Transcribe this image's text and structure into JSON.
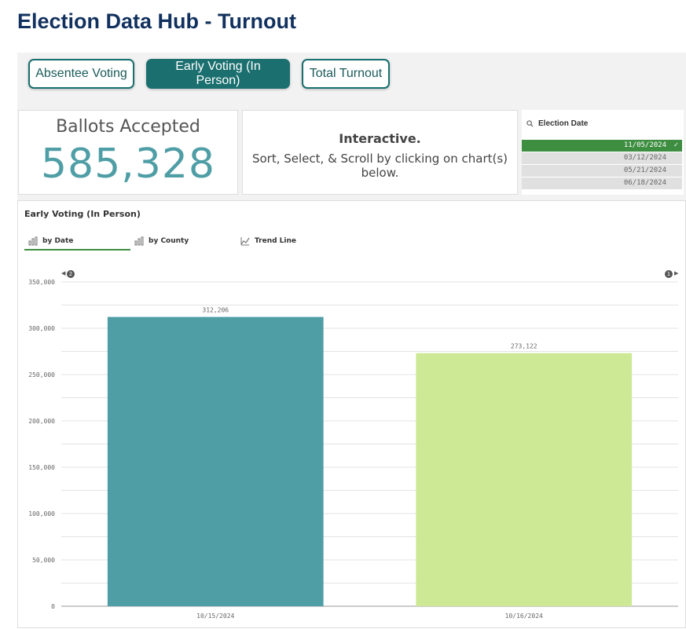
{
  "page": {
    "title": "Election Data Hub - Turnout"
  },
  "tabs": [
    {
      "label": "Absentee Voting",
      "active": false
    },
    {
      "label": "Early Voting (In Person)",
      "active": true
    },
    {
      "label": "Total Turnout",
      "active": false
    }
  ],
  "kpi": {
    "label": "Ballots Accepted",
    "value": "585,328"
  },
  "info": {
    "title": "Interactive.",
    "text": "Sort, Select, & Scroll by clicking on chart(s) below."
  },
  "filter": {
    "title": "Election Date",
    "items": [
      "11/05/2024",
      "03/12/2024",
      "05/21/2024",
      "06/18/2024"
    ],
    "selected": "11/05/2024"
  },
  "chart_panel": {
    "title": "Early Voting (In Person)",
    "subtabs": [
      "by Date",
      "by County",
      "Trend Line"
    ],
    "active_subtab": "by Date",
    "scroll_left_count": "2",
    "scroll_right_count": "1"
  },
  "colors": {
    "accent": "#1b6f6f",
    "bar1": "#4f9ea6",
    "bar2": "#cde995",
    "selected": "#3e8e41"
  },
  "chart_data": {
    "type": "bar",
    "categories": [
      "10/15/2024",
      "10/16/2024"
    ],
    "values": [
      312206,
      273122
    ],
    "value_labels": [
      "312,206",
      "273,122"
    ],
    "ylim": [
      0,
      350000
    ],
    "yticks": [
      0,
      50000,
      100000,
      150000,
      200000,
      250000,
      300000,
      350000
    ],
    "ytick_labels": [
      "0",
      "50,000",
      "100,000",
      "150,000",
      "200,000",
      "250,000",
      "300,000",
      "350,000"
    ],
    "grid": true,
    "title": "",
    "xlabel": "",
    "ylabel": ""
  }
}
